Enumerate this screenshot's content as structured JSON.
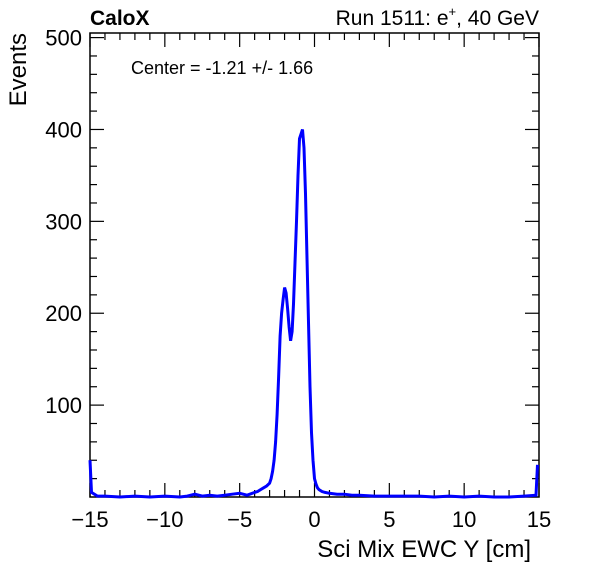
{
  "header": {
    "experiment": "CaloX",
    "run_prefix": "Run 1511: e",
    "run_sup": "+",
    "run_suffix": ", 40 GeV"
  },
  "chart_data": {
    "type": "line",
    "xlabel": "Sci Mix EWC Y [cm]",
    "ylabel": "Events",
    "xlim": [
      -15,
      15
    ],
    "ylim": [
      0,
      505
    ],
    "grid": false,
    "annotation": "Center = -1.21 +/- 1.66",
    "x_ticks": [
      -15,
      -10,
      -5,
      0,
      5,
      10,
      15
    ],
    "x_tick_labels": [
      "−15",
      "−10",
      "−5",
      "0",
      "5",
      "10",
      "15"
    ],
    "y_ticks": [
      100,
      200,
      300,
      400,
      500
    ],
    "y_tick_labels": [
      "100",
      "200",
      "300",
      "400",
      "500"
    ],
    "series": [
      {
        "color": "#0000ff",
        "x": [
          -15.0,
          -14.9,
          -14.5,
          -14.0,
          -13.0,
          -12.0,
          -11.0,
          -10.0,
          -9.0,
          -8.5,
          -8.0,
          -7.5,
          -7.0,
          -6.5,
          -6.0,
          -5.5,
          -5.0,
          -4.5,
          -4.0,
          -3.8,
          -3.6,
          -3.4,
          -3.2,
          -3.0,
          -2.9,
          -2.8,
          -2.7,
          -2.6,
          -2.5,
          -2.4,
          -2.3,
          -2.2,
          -2.1,
          -2.0,
          -1.9,
          -1.8,
          -1.7,
          -1.6,
          -1.5,
          -1.4,
          -1.3,
          -1.2,
          -1.1,
          -1.0,
          -0.9,
          -0.8,
          -0.7,
          -0.6,
          -0.5,
          -0.4,
          -0.3,
          -0.2,
          -0.1,
          0.0,
          0.1,
          0.2,
          0.3,
          0.5,
          0.7,
          1.0,
          1.5,
          2.0,
          2.5,
          3.0,
          4.0,
          5.0,
          6.0,
          7.0,
          8.0,
          9.0,
          10.0,
          11.0,
          12.0,
          13.0,
          14.0,
          14.8,
          14.9
        ],
        "y": [
          40,
          5,
          1,
          1,
          0,
          1,
          0,
          1,
          0,
          1,
          3,
          1,
          2,
          1,
          2,
          3,
          4,
          2,
          5,
          6,
          8,
          10,
          12,
          15,
          20,
          28,
          40,
          60,
          90,
          130,
          175,
          200,
          215,
          228,
          222,
          205,
          185,
          170,
          180,
          210,
          255,
          300,
          350,
          390,
          395,
          400,
          380,
          330,
          260,
          190,
          120,
          70,
          40,
          20,
          14,
          10,
          8,
          6,
          5,
          4,
          3,
          3,
          2,
          2,
          1,
          1,
          1,
          1,
          0,
          1,
          0,
          1,
          0,
          0,
          1,
          2,
          35
        ]
      }
    ]
  }
}
